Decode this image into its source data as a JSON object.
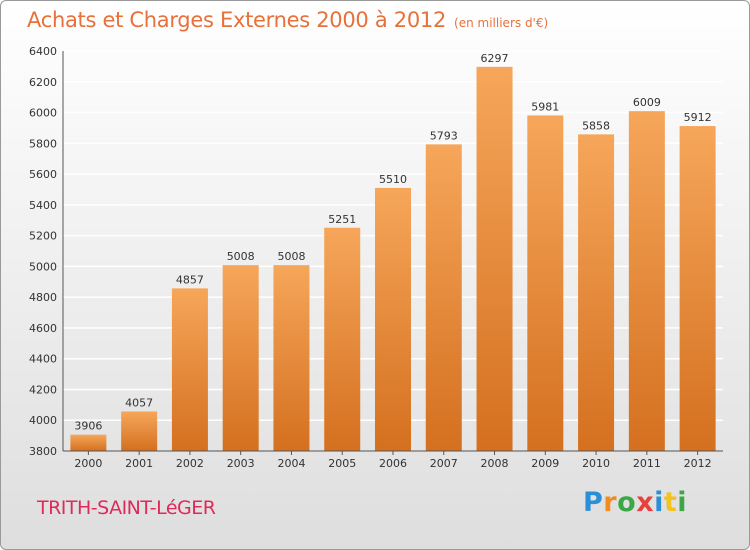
{
  "title": "Achats et Charges Externes 2000 à 2012",
  "subtitle": "(en milliers d'€)",
  "place_name": "TRITH-SAINT-LéGER",
  "logo": {
    "letters": [
      "P",
      "r",
      "o",
      "x",
      "i",
      "t",
      "i"
    ],
    "colors": [
      "#2a8fd6",
      "#f28c1e",
      "#3aa845",
      "#e8403a",
      "#2a8fd6",
      "#f2c21e",
      "#3aa845"
    ]
  },
  "colors": {
    "bar_top": "#f6a65a",
    "bar_bottom": "#d4701f",
    "title": "#e8703a",
    "place": "#dd2a5a",
    "grid": "#ffffff"
  },
  "chart_data": {
    "type": "bar",
    "title": "Achats et Charges Externes 2000 à 2012",
    "subtitle": "(en milliers d'€)",
    "categories": [
      "2000",
      "2001",
      "2002",
      "2003",
      "2004",
      "2005",
      "2006",
      "2007",
      "2008",
      "2009",
      "2010",
      "2011",
      "2012"
    ],
    "values": [
      3906,
      4057,
      4857,
      5008,
      5008,
      5251,
      5510,
      5793,
      6297,
      5981,
      5858,
      6009,
      5912
    ],
    "ylim": [
      3800,
      6400
    ],
    "yticks": [
      3800,
      4000,
      4200,
      4400,
      4600,
      4800,
      5000,
      5200,
      5400,
      5600,
      5800,
      6000,
      6200,
      6400
    ],
    "xlabel": "",
    "ylabel": "",
    "grid": true,
    "legend": "none",
    "data_labels": true
  }
}
